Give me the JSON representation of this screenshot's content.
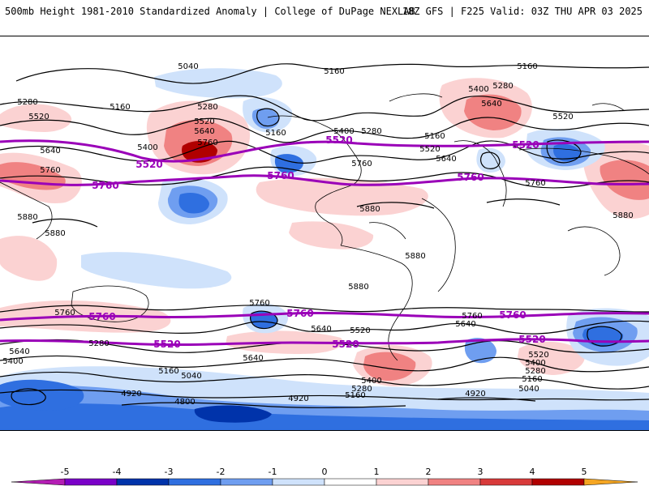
{
  "header": {
    "title": "500mb Height 1981-2010 Standardized Anomaly | College of DuPage NEXLAB",
    "run_info": "18Z GFS | F225 Valid: 03Z THU APR 03 2025"
  },
  "colors": {
    "contour": "#000000",
    "highlight_contour": "#9a00b8",
    "coastline": "#000000",
    "background": "#ffffff"
  },
  "highlight_labels": [
    {
      "text": "5520"
    },
    {
      "text": "5520"
    },
    {
      "text": "5520"
    },
    {
      "text": "5760"
    },
    {
      "text": "5760"
    },
    {
      "text": "5760"
    },
    {
      "text": "5760"
    },
    {
      "text": "5760"
    },
    {
      "text": "5760"
    },
    {
      "text": "5520"
    },
    {
      "text": "5520"
    },
    {
      "text": "5520"
    }
  ],
  "contour_labels": [
    {
      "text": "5040"
    },
    {
      "text": "5160"
    },
    {
      "text": "5160"
    },
    {
      "text": "5280"
    },
    {
      "text": "5160"
    },
    {
      "text": "5280"
    },
    {
      "text": "5520"
    },
    {
      "text": "5520"
    },
    {
      "text": "5640"
    },
    {
      "text": "5760"
    },
    {
      "text": "5400"
    },
    {
      "text": "5640"
    },
    {
      "text": "5760"
    },
    {
      "text": "5880"
    },
    {
      "text": "5880"
    },
    {
      "text": "5160"
    },
    {
      "text": "5400"
    },
    {
      "text": "5280"
    },
    {
      "text": "5160"
    },
    {
      "text": "5520"
    },
    {
      "text": "5760"
    },
    {
      "text": "5640"
    },
    {
      "text": "5880"
    },
    {
      "text": "5880"
    },
    {
      "text": "5400"
    },
    {
      "text": "5280"
    },
    {
      "text": "5640"
    },
    {
      "text": "5520"
    },
    {
      "text": "5760"
    },
    {
      "text": "5880"
    },
    {
      "text": "5880"
    },
    {
      "text": "5760"
    },
    {
      "text": "5640"
    },
    {
      "text": "5400"
    },
    {
      "text": "5280"
    },
    {
      "text": "5160"
    },
    {
      "text": "5040"
    },
    {
      "text": "4920"
    },
    {
      "text": "4800"
    },
    {
      "text": "5640"
    },
    {
      "text": "5760"
    },
    {
      "text": "5640"
    },
    {
      "text": "5520"
    },
    {
      "text": "5400"
    },
    {
      "text": "5280"
    },
    {
      "text": "5160"
    },
    {
      "text": "4920"
    },
    {
      "text": "4920"
    },
    {
      "text": "5760"
    },
    {
      "text": "5640"
    },
    {
      "text": "5520"
    },
    {
      "text": "5400"
    },
    {
      "text": "5280"
    },
    {
      "text": "5160"
    },
    {
      "text": "5040"
    }
  ],
  "colorbar": {
    "ticks": [
      "-5",
      "-4",
      "-3",
      "-2",
      "-1",
      "0",
      "1",
      "2",
      "3",
      "4",
      "5"
    ],
    "colors": [
      "#b41eb4",
      "#7a00c8",
      "#0033aa",
      "#2f6fe0",
      "#6f9ef0",
      "#cfe2fb",
      "#ffffff",
      "#fbd2d2",
      "#f08282",
      "#d83a3a",
      "#b00000",
      "#f5a623"
    ]
  }
}
